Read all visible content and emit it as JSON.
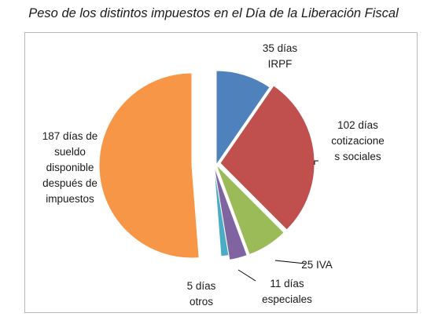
{
  "chart_data": {
    "type": "pie",
    "title": "Peso de los distintos impuestos en el Día de la Liberación Fiscal",
    "categories": [
      "IRPF",
      "cotizaciones sociales",
      "IVA",
      "especiales",
      "otros",
      "sueldo disponible después de impuestos"
    ],
    "values": [
      35,
      102,
      25,
      11,
      5,
      187
    ],
    "colors": [
      "#4f81bd",
      "#c0504d",
      "#9bbb59",
      "#8064a2",
      "#4bacc6",
      "#f79646"
    ],
    "labels": [
      [
        "35 días",
        "IRPF"
      ],
      [
        "102 días",
        "cotizacione",
        "s sociales"
      ],
      [
        "25 IVA"
      ],
      [
        "11 días",
        "especiales"
      ],
      [
        "5 días",
        "otros"
      ],
      [
        "187 días de",
        "sueldo",
        "disponible",
        "después de",
        "impuestos"
      ]
    ],
    "exploded": true,
    "legend": "none"
  }
}
